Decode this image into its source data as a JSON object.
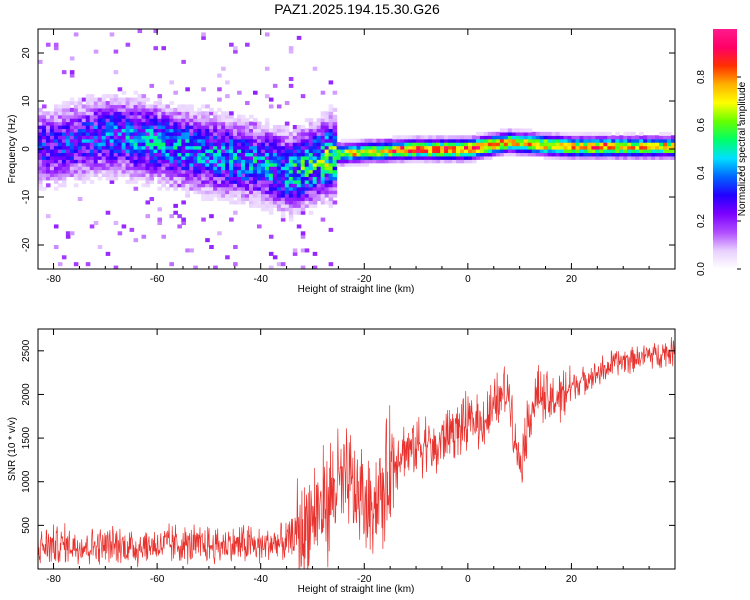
{
  "title": "PAZ1.2025.194.15.30.G26",
  "colors": {
    "snr_line": "#e8322e",
    "colormap": [
      "#ffffff",
      "#e8cfff",
      "#b04cff",
      "#7a00ff",
      "#2200ff",
      "#0066ff",
      "#00e0ff",
      "#00ff66",
      "#66ff00",
      "#ffff00",
      "#ffb000",
      "#ff3000",
      "#ff0066",
      "#ff1a8c"
    ]
  },
  "chart_data": [
    {
      "type": "heatmap",
      "title": "PAZ1.2025.194.15.30.G26",
      "xlabel": "Height of straight line (km)",
      "ylabel": "Frequency (Hz)",
      "xlim": [
        -83,
        40
      ],
      "ylim": [
        -25,
        25
      ],
      "xticks": [
        -80,
        -60,
        -40,
        -20,
        0,
        20
      ],
      "yticks": [
        -20,
        -10,
        0,
        10,
        20
      ],
      "colorbar": {
        "label": "Normalized spectral amplitude",
        "range": [
          0,
          1
        ],
        "ticks": [
          "0.0",
          "0.2",
          "0.4",
          "0.6",
          "0.8"
        ]
      },
      "ridge": [
        {
          "x": -80,
          "f": 0.5,
          "amp": 0.3
        },
        {
          "x": -70,
          "f": 3.0,
          "amp": 0.35
        },
        {
          "x": -60,
          "f": 1.5,
          "amp": 0.4
        },
        {
          "x": -50,
          "f": -1.0,
          "amp": 0.4
        },
        {
          "x": -40,
          "f": -3.0,
          "amp": 0.4
        },
        {
          "x": -34,
          "f": -5.0,
          "amp": 0.45
        },
        {
          "x": -30,
          "f": -3.0,
          "amp": 0.5
        },
        {
          "x": -25,
          "f": -1.0,
          "amp": 0.6
        },
        {
          "x": -20,
          "f": -0.5,
          "amp": 0.65
        },
        {
          "x": -10,
          "f": 0.0,
          "amp": 0.8
        },
        {
          "x": 0,
          "f": 0.0,
          "amp": 0.85
        },
        {
          "x": 8,
          "f": 1.5,
          "amp": 0.75
        },
        {
          "x": 20,
          "f": 0.5,
          "amp": 0.75
        },
        {
          "x": 40,
          "f": 0.5,
          "amp": 0.7
        }
      ]
    },
    {
      "type": "line",
      "xlabel": "Height of straight line (km)",
      "ylabel": "SNR (10 * v/v)",
      "xlim": [
        -83,
        40
      ],
      "ylim": [
        0,
        2750
      ],
      "xticks": [
        -80,
        -60,
        -40,
        -20,
        0,
        20
      ],
      "yticks": [
        500,
        1000,
        1500,
        2000,
        2500
      ],
      "series": [
        {
          "x": [
            -83,
            -80,
            -75,
            -70,
            -65,
            -60,
            -55,
            -50,
            -45,
            -40,
            -35,
            -32,
            -30,
            -27,
            -25,
            -22,
            -20,
            -18,
            -16,
            -15,
            -13,
            -10,
            -8,
            -6,
            -5,
            -3,
            0,
            3,
            5,
            6,
            8,
            9,
            10,
            12,
            14,
            16,
            18,
            20,
            25,
            30,
            35,
            40
          ],
          "values": [
            250,
            280,
            270,
            270,
            250,
            270,
            280,
            260,
            280,
            270,
            300,
            450,
            600,
            800,
            1000,
            900,
            700,
            800,
            900,
            1200,
            1350,
            1400,
            1450,
            1350,
            1500,
            1600,
            1650,
            1700,
            1800,
            1950,
            2050,
            1600,
            1200,
            1800,
            2000,
            1900,
            2000,
            2100,
            2250,
            2400,
            2450,
            2500
          ]
        }
      ]
    }
  ]
}
